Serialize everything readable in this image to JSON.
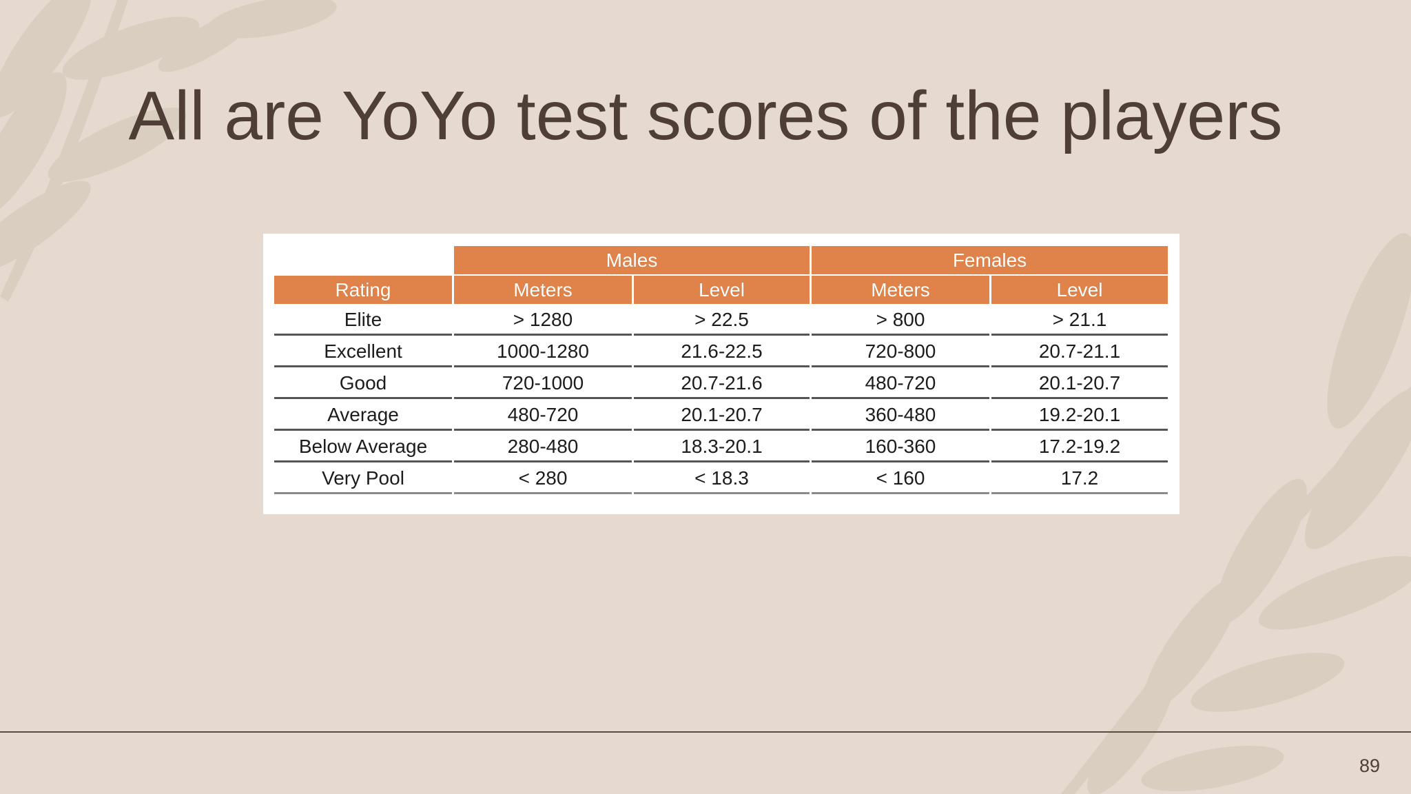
{
  "slide": {
    "title": "All are YoYo test scores of the players",
    "page_number": "89"
  },
  "table": {
    "group_headers": [
      "Males",
      "Females"
    ],
    "column_headers": [
      "Rating",
      "Meters",
      "Level",
      "Meters",
      "Level"
    ],
    "rows": [
      [
        "Elite",
        "> 1280",
        "> 22.5",
        "> 800",
        "> 21.1"
      ],
      [
        "Excellent",
        "1000-1280",
        "21.6-22.5",
        "720-800",
        "20.7-21.1"
      ],
      [
        "Good",
        "720-1000",
        "20.7-21.6",
        "480-720",
        "20.1-20.7"
      ],
      [
        "Average",
        "480-720",
        "20.1-20.7",
        "360-480",
        "19.2-20.1"
      ],
      [
        "Below Average",
        "280-480",
        "18.3-20.1",
        "160-360",
        "17.2-19.2"
      ],
      [
        "Very Pool",
        "< 280",
        "< 18.3",
        "< 160",
        "17.2"
      ]
    ]
  },
  "colors": {
    "background": "#e6dad0",
    "title": "#4e3e35",
    "header_fill": "#e0834a",
    "leaf": "#d9cdbf"
  }
}
